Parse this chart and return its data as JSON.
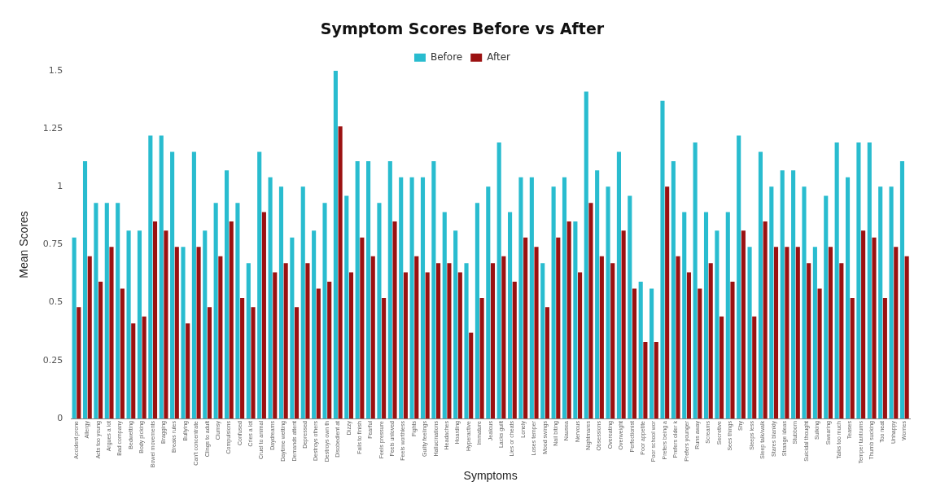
{
  "chart_data": {
    "type": "bar",
    "title": "Symptom Scores Before vs After",
    "xlabel": "Symptoms",
    "ylabel": "Mean Scores",
    "categories": [
      "Accident prone",
      "Allergy",
      "Acts too young",
      "Argues a lot",
      "Bad company",
      "Bedwetting",
      "Body picking",
      "Bowel movements",
      "Bragging",
      "Breaks rules",
      "Bullying",
      "Can't concentrate",
      "Clings to adult",
      "Clumsy",
      "Compulsions",
      "Confused",
      "Cries a lot",
      "Cruel to animal",
      "Daydreams",
      "Daytime wetting",
      "Demands attent",
      "Depressed",
      "Destroys others",
      "Destroys own th",
      "Disobedient at",
      "Dizzy",
      "Fails to finish",
      "Fearful",
      "Feels pressure",
      "Feels unloved",
      "Feels worthless",
      "Fights",
      "Guilty feelings",
      "Hallucinations",
      "Headaches",
      "Hoarding",
      "Hyperactive",
      "Immature",
      "Jealous",
      "Lacks guilt",
      "Lies or cheats",
      "Lonely",
      "Loses temper",
      "Mood swings",
      "Nail biting",
      "Nausea",
      "Nervous",
      "Nightmares",
      "Obsessions",
      "Overeating",
      "Overweight",
      "Perfectionist",
      "Poor appetite",
      "Poor school wor",
      "Prefers being a",
      "Prefers older k",
      "Prefers younger",
      "Runs away",
      "Screams",
      "Secretive",
      "Sees things",
      "Shy",
      "Sleeps less",
      "Sleep talk/walk",
      "Stares blankly",
      "Strange ideas",
      "Stubborn",
      "Suicidal thought",
      "Sulking",
      "Swearing",
      "Talks too much",
      "Teases",
      "Temper tantrums",
      "Thumb sucking",
      "Too neat",
      "Unhappy",
      "Worries"
    ],
    "series": [
      {
        "name": "Before",
        "color": "#29bccf",
        "values": [
          0.78,
          1.11,
          0.93,
          0.93,
          0.93,
          0.81,
          0.81,
          1.22,
          1.22,
          1.15,
          0.74,
          1.15,
          0.81,
          0.93,
          1.07,
          0.93,
          0.67,
          1.15,
          1.04,
          1.0,
          0.78,
          1.0,
          0.81,
          0.93,
          1.5,
          0.96,
          1.11,
          1.11,
          0.93,
          1.11,
          1.04,
          1.04,
          1.04,
          1.11,
          0.89,
          0.81,
          0.67,
          0.93,
          1.0,
          1.19,
          0.89,
          1.04,
          1.04,
          0.67,
          1.0,
          1.04,
          0.85,
          1.41,
          1.07,
          1.0,
          1.15,
          0.96,
          0.59,
          0.56,
          1.37,
          1.11,
          0.89,
          1.19,
          0.89,
          0.81,
          0.89,
          1.22,
          0.74,
          1.15,
          1.0,
          1.07,
          1.07,
          1.0,
          0.74,
          0.96,
          1.19,
          1.04,
          1.19,
          1.19,
          1.0,
          1.0,
          1.11
        ]
      },
      {
        "name": "After",
        "color": "#9b1111",
        "values": [
          0.48,
          0.7,
          0.59,
          0.74,
          0.56,
          0.41,
          0.44,
          0.85,
          0.81,
          0.74,
          0.41,
          0.74,
          0.48,
          0.7,
          0.85,
          0.52,
          0.48,
          0.89,
          0.63,
          0.67,
          0.48,
          0.67,
          0.56,
          0.59,
          1.26,
          0.63,
          0.78,
          0.7,
          0.52,
          0.85,
          0.63,
          0.7,
          0.63,
          0.67,
          0.67,
          0.63,
          0.37,
          0.52,
          0.67,
          0.7,
          0.59,
          0.78,
          0.74,
          0.48,
          0.78,
          0.85,
          0.63,
          0.93,
          0.7,
          0.67,
          0.81,
          0.56,
          0.33,
          0.33,
          1.0,
          0.7,
          0.63,
          0.56,
          0.67,
          0.44,
          0.59,
          0.81,
          0.44,
          0.85,
          0.74,
          0.74,
          0.74,
          0.67,
          0.56,
          0.74,
          0.67,
          0.52,
          0.81,
          0.78,
          0.52,
          0.74,
          0.7
        ]
      }
    ],
    "ylim": [
      0,
      1.5
    ],
    "yticks": [
      0,
      0.25,
      0.5,
      0.75,
      1,
      1.25,
      1.5
    ],
    "grid": false,
    "legend": "top"
  }
}
